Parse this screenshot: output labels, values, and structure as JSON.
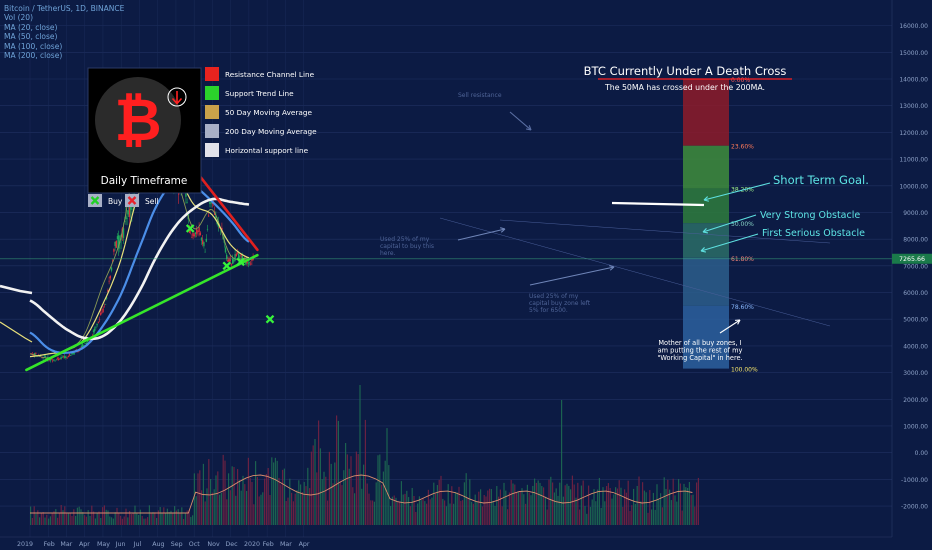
{
  "header": {
    "symbol_line": "Bitcoin / TetherUS, 1D, BINANCE",
    "indicators": [
      "Vol (20)",
      "MA (20, close)",
      "MA (50, close)",
      "MA (100, close)",
      "MA (200, close)"
    ]
  },
  "colors": {
    "background": "#0c1b44",
    "resistance": "#e0201f",
    "support": "#35e52a",
    "ma50": "#e8e07a",
    "ma200": "#f2f2f2",
    "ma100": "#4b8ee8",
    "ma20": "#8a9a55",
    "up_candle": "#1fa85b",
    "down_candle": "#d72c3b"
  },
  "logo_box": {
    "caption": "Daily Timeframe",
    "symbol": "bitcoin-icon",
    "arrow": "arrow-down-circle-icon"
  },
  "color_legend": [
    {
      "label": "Resistance Channel Line",
      "color": "#e8231f"
    },
    {
      "label": "Support Trend Line",
      "color": "#2bd32b"
    },
    {
      "label": "50 Day Moving Average",
      "color": "#c9a24a"
    },
    {
      "label": "200 Day Moving Average",
      "color": "#a9b0c6"
    },
    {
      "label": "Horizontal support line",
      "color": "#e2e2ea"
    }
  ],
  "signals_legend": {
    "buy": "Buy",
    "sell": "Sell"
  },
  "title": {
    "main": "BTC Currently Under A Death Cross",
    "sub": "The 50MA has crossed under the 200MA."
  },
  "annotations": {
    "short_term_goal": "Short Term Goal.",
    "very_strong_obstacle": "Very Strong Obstacle",
    "first_serious_obstacle": "First Serious Obstacle",
    "buy_zone_note": [
      "Mother of all buy zones, I",
      "am putting the rest of my",
      "\"Working Capital\" in here."
    ],
    "faded_notes": [
      [
        "Used 25% of my",
        "capital to buy this",
        "here."
      ],
      [
        "Used 25% of my",
        "capital buy zone left",
        "5% for 6500."
      ],
      [
        "Sell resistance"
      ]
    ]
  },
  "fib_labels": [
    "0.00%",
    "23.60%",
    "38.20%",
    "50.00%",
    "61.80%",
    "78.60%",
    "100.00%"
  ],
  "price_axis": {
    "ticks": [
      "16000.00",
      "15000.00",
      "14000.00",
      "13000.00",
      "12000.00",
      "11000.00",
      "10000.00",
      "9000.00",
      "8000.00",
      "7000.00",
      "6000.00",
      "5000.00",
      "4000.00",
      "3000.00",
      "2000.00",
      "1000.00",
      "0.00",
      "-1000.00",
      "-2000.00"
    ],
    "current_price": "7265.66"
  },
  "time_axis": {
    "labels": [
      "2019",
      "Feb",
      "Mar",
      "Apr",
      "May",
      "Jun",
      "Jul",
      "Aug",
      "Sep",
      "Oct",
      "Nov",
      "Dec",
      "2020",
      "Feb",
      "Mar",
      "Apr"
    ]
  },
  "chart_data": {
    "type": "line",
    "title": "BTC Currently Under A Death Cross",
    "subtitle": "The 50MA has crossed under the 200MA.",
    "x": [
      "2019-01-01",
      "2019-02-01",
      "2019-03-01",
      "2019-04-01",
      "2019-05-01",
      "2019-06-01",
      "2019-07-01",
      "2019-08-01",
      "2019-09-01",
      "2019-10-01",
      "2019-11-01",
      "2019-12-01",
      "2020-01-01"
    ],
    "series": [
      {
        "name": "MA (20, close)",
        "values": [
          3700,
          3550,
          3800,
          4400,
          6200,
          8000,
          11300,
          10800,
          10300,
          8400,
          9100,
          7400,
          7300
        ]
      },
      {
        "name": "MA (50, close)",
        "values": [
          3600,
          3700,
          3820,
          4250,
          5500,
          7200,
          9700,
          10800,
          10500,
          9300,
          8900,
          7800,
          7300
        ]
      },
      {
        "name": "MA (100, close)",
        "values": [
          4500,
          3900,
          3740,
          3950,
          4700,
          5900,
          7600,
          9300,
          10200,
          10000,
          9400,
          8700,
          7900
        ]
      },
      {
        "name": "MA (200, close)",
        "values": [
          5700,
          5150,
          4650,
          4300,
          4350,
          4950,
          6000,
          7400,
          8500,
          9150,
          9500,
          9400,
          9300
        ]
      }
    ],
    "trend_lines": [
      {
        "name": "Resistance Channel Line",
        "from": [
          "2019-06-24",
          13500
        ],
        "to": [
          "2020-01-15",
          7600
        ]
      },
      {
        "name": "Support Trend Line",
        "from": [
          "2018-12-26",
          3100
        ],
        "to": [
          "2020-01-15",
          7400
        ]
      }
    ],
    "fibonacci_levels": [
      {
        "label": "0.00%",
        "price": 14000
      },
      {
        "label": "23.60%",
        "price": 11500
      },
      {
        "label": "38.20%",
        "price": 9900
      },
      {
        "label": "50.00%",
        "price": 8600
      },
      {
        "label": "61.80%",
        "price": 7300
      },
      {
        "label": "78.60%",
        "price": 5500
      },
      {
        "label": "100.00%",
        "price": 3150
      }
    ],
    "buy_signals": [
      [
        "2019-09-25",
        8400
      ],
      [
        "2019-11-25",
        7000
      ],
      [
        "2019-12-18",
        7150
      ],
      [
        "2020-02-05",
        5000
      ]
    ],
    "current_price": 7265.66,
    "ylim": [
      -2500,
      16800
    ],
    "xlabel": "",
    "ylabel": "",
    "grid": true,
    "legend": "top-left"
  }
}
